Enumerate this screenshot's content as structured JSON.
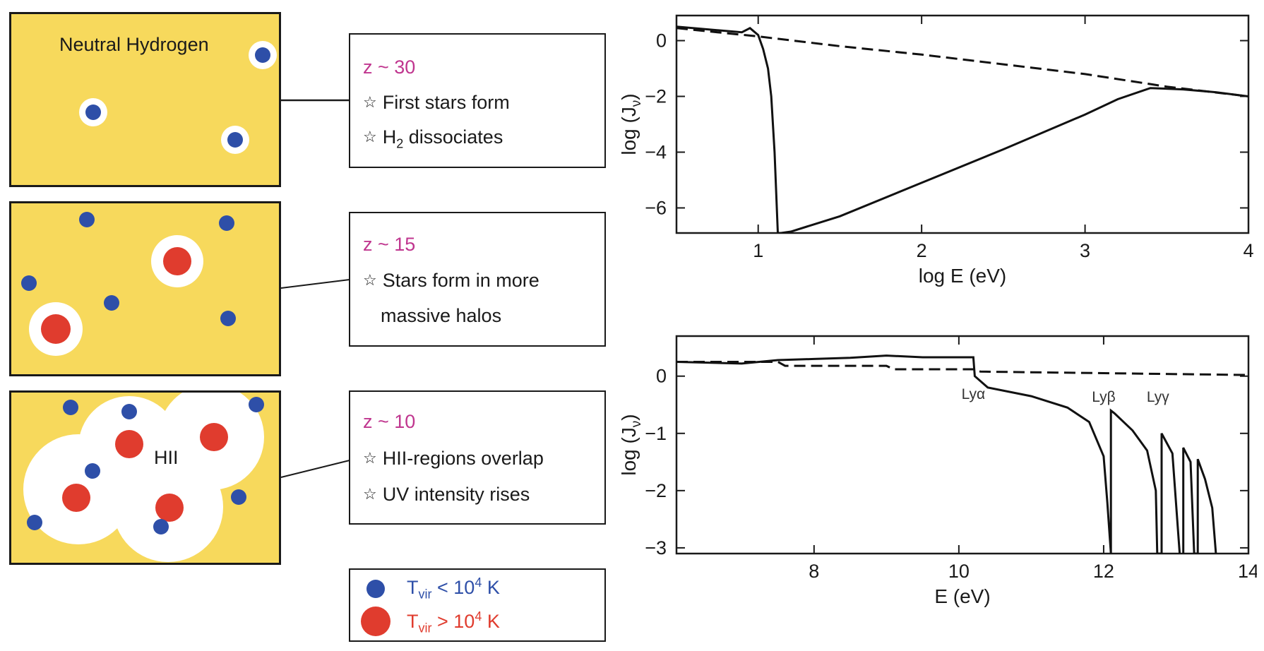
{
  "panels": [
    {
      "label": "Neutral Hydrogen",
      "colors": {
        "background": "#f7d95c",
        "halo_small": "#2e4fa8",
        "halo_large": "#e03c2e",
        "ionized": "#ffffff"
      }
    },
    {
      "label": ""
    },
    {
      "label": "HII"
    }
  ],
  "stages": [
    {
      "redshift": "z ~ 30",
      "bullets": [
        {
          "star_icon": "☆",
          "text": "First stars form"
        },
        {
          "star_icon": "☆",
          "pre": "H",
          "sub": "2",
          "post": " dissociates"
        }
      ]
    },
    {
      "redshift": "z ~ 15",
      "bullets": [
        {
          "star_icon": "☆",
          "text": "Stars form in more"
        },
        {
          "star_icon": "",
          "text": "massive halos"
        }
      ]
    },
    {
      "redshift": "z ~ 10",
      "bullets": [
        {
          "star_icon": "☆",
          "text": "HII-regions overlap"
        },
        {
          "star_icon": "☆",
          "text": "UV intensity rises"
        }
      ]
    }
  ],
  "legend": [
    {
      "T": "T",
      "sub": "vir",
      "rel": " < 10",
      "sup": "4",
      "unit": " K",
      "color": "#2e4fa8"
    },
    {
      "T": "T",
      "sub": "vir",
      "rel": " > 10",
      "sup": "4",
      "unit": " K",
      "color": "#e03c2e"
    }
  ],
  "chart_data": [
    {
      "type": "line",
      "xlabel": "log E (eV)",
      "ylabel_main": "log (J",
      "ylabel_sub": "ν",
      "ylabel_close": ")",
      "xlim": [
        0.5,
        4
      ],
      "ylim": [
        -6.9,
        0.9
      ],
      "xticks": [
        1,
        2,
        3,
        4
      ],
      "yticks": [
        0,
        -2,
        -4,
        -6
      ],
      "series": [
        {
          "style": "dashed",
          "x": [
            0.5,
            1.0,
            1.5,
            2.0,
            2.5,
            3.0,
            3.5,
            4.0
          ],
          "y": [
            0.45,
            0.15,
            -0.2,
            -0.5,
            -0.85,
            -1.2,
            -1.65,
            -2.0
          ]
        },
        {
          "style": "solid",
          "x": [
            0.5,
            0.9,
            0.95,
            1.0,
            1.03,
            1.06,
            1.08,
            1.1,
            1.12,
            1.14,
            1.2,
            1.5,
            2.0,
            2.5,
            3.0,
            3.2,
            3.4,
            3.6,
            3.8,
            4.0
          ],
          "y": [
            0.5,
            0.3,
            0.45,
            0.2,
            -0.3,
            -1.0,
            -2.0,
            -4.0,
            -6.9,
            -6.9,
            -6.85,
            -6.3,
            -5.1,
            -3.9,
            -2.65,
            -2.1,
            -1.7,
            -1.75,
            -1.85,
            -2.0
          ]
        }
      ],
      "annotations": []
    },
    {
      "type": "line",
      "xlabel": "E (eV)",
      "ylabel_main": "log (J",
      "ylabel_sub": "ν",
      "ylabel_close": ")",
      "xlim": [
        6.1,
        14
      ],
      "ylim": [
        -3.1,
        0.7
      ],
      "xticks": [
        8,
        10,
        12,
        14
      ],
      "yticks": [
        0,
        -1,
        -2,
        -3
      ],
      "series": [
        {
          "style": "dashed",
          "x": [
            6.1,
            7.5,
            7.6,
            9.0,
            9.1,
            10.2,
            10.3,
            14.0
          ],
          "y": [
            0.25,
            0.25,
            0.18,
            0.18,
            0.12,
            0.12,
            0.08,
            0.02
          ]
        },
        {
          "style": "solid",
          "x": [
            6.1,
            7.0,
            7.5,
            8.0,
            8.5,
            9.0,
            9.5,
            10.2,
            10.22,
            10.4,
            11.0,
            11.5,
            11.8,
            12.0,
            12.05,
            12.1,
            12.1,
            12.15,
            12.4,
            12.6,
            12.72,
            12.74,
            12.8,
            12.8,
            12.95,
            13.05
          ],
          "y": [
            0.25,
            0.22,
            0.28,
            0.3,
            0.32,
            0.36,
            0.33,
            0.33,
            0.0,
            -0.2,
            -0.35,
            -0.55,
            -0.8,
            -1.4,
            -2.2,
            -3.1,
            -0.6,
            -0.65,
            -0.95,
            -1.3,
            -2.0,
            -3.1,
            -3.1,
            -1.0,
            -1.35,
            -3.1
          ]
        },
        {
          "style": "solid",
          "x": [
            13.1,
            13.1,
            13.2,
            13.25,
            13.3,
            13.3,
            13.4,
            13.5,
            13.55
          ],
          "y": [
            -3.1,
            -1.25,
            -1.5,
            -3.1,
            -3.1,
            -1.45,
            -1.8,
            -2.3,
            -3.1
          ]
        }
      ],
      "annotations": [
        {
          "text": "Lyα",
          "x": 10.2,
          "y": -0.4
        },
        {
          "text": "Lyβ",
          "x": 12.0,
          "y": -0.45
        },
        {
          "text": "Lyγ",
          "x": 12.75,
          "y": -0.45
        }
      ]
    }
  ]
}
